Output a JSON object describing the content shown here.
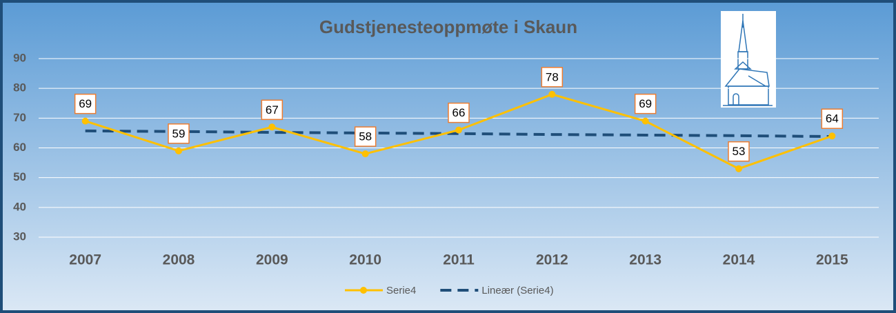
{
  "chart_data": {
    "type": "line",
    "title": "Gudstjenesteoppmøte i Skaun",
    "categories": [
      "2007",
      "2008",
      "2009",
      "2010",
      "2011",
      "2012",
      "2013",
      "2014",
      "2015"
    ],
    "series": [
      {
        "name": "Serie4",
        "color": "#ffc000",
        "values": [
          69,
          59,
          67,
          58,
          66,
          78,
          69,
          53,
          64
        ],
        "data_labels": true,
        "markers": true
      },
      {
        "name": "Lineær (Serie4)",
        "color": "#1f4e79",
        "values": [
          65.7,
          65.5,
          65.2,
          65.0,
          64.8,
          64.5,
          64.3,
          64.1,
          63.8
        ],
        "dashed": true
      }
    ],
    "ylim": [
      30,
      90
    ],
    "yticks": [
      30,
      40,
      50,
      60,
      70,
      80,
      90
    ],
    "grid": true,
    "legend": "bottom"
  }
}
